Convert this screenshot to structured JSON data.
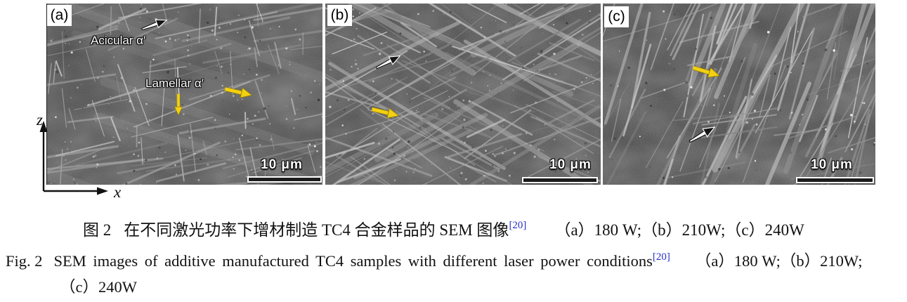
{
  "figure": {
    "axes": {
      "z": "z",
      "x": "x"
    },
    "panels": [
      {
        "label": "(a)",
        "scale_bar": "10 μm",
        "annotations": {
          "acicular": "Acicular α′",
          "lamellar": "Lamellar α′"
        }
      },
      {
        "label": "(b)",
        "scale_bar": "10 μm"
      },
      {
        "label": "(c)",
        "scale_bar": "10 μm"
      }
    ],
    "colors": {
      "arrow_yellow": "#f3d011",
      "arrow_white": "#ffffff",
      "reference_blue": "#2630c8"
    }
  },
  "captions": {
    "zh": {
      "label": "图 2",
      "text": "在不同激光功率下增材制造 TC4 合金样品的 SEM 图像",
      "ref": "[20]",
      "conditions": "（a）180 W;（b）210W;（c）240W"
    },
    "en": {
      "label": "Fig. 2",
      "text": "SEM images of additive manufactured TC4 samples with different laser power conditions",
      "ref": "[20]",
      "conditions_line1": "（a）180 W;（b）210W;",
      "conditions_line2": "（c）240W"
    }
  }
}
